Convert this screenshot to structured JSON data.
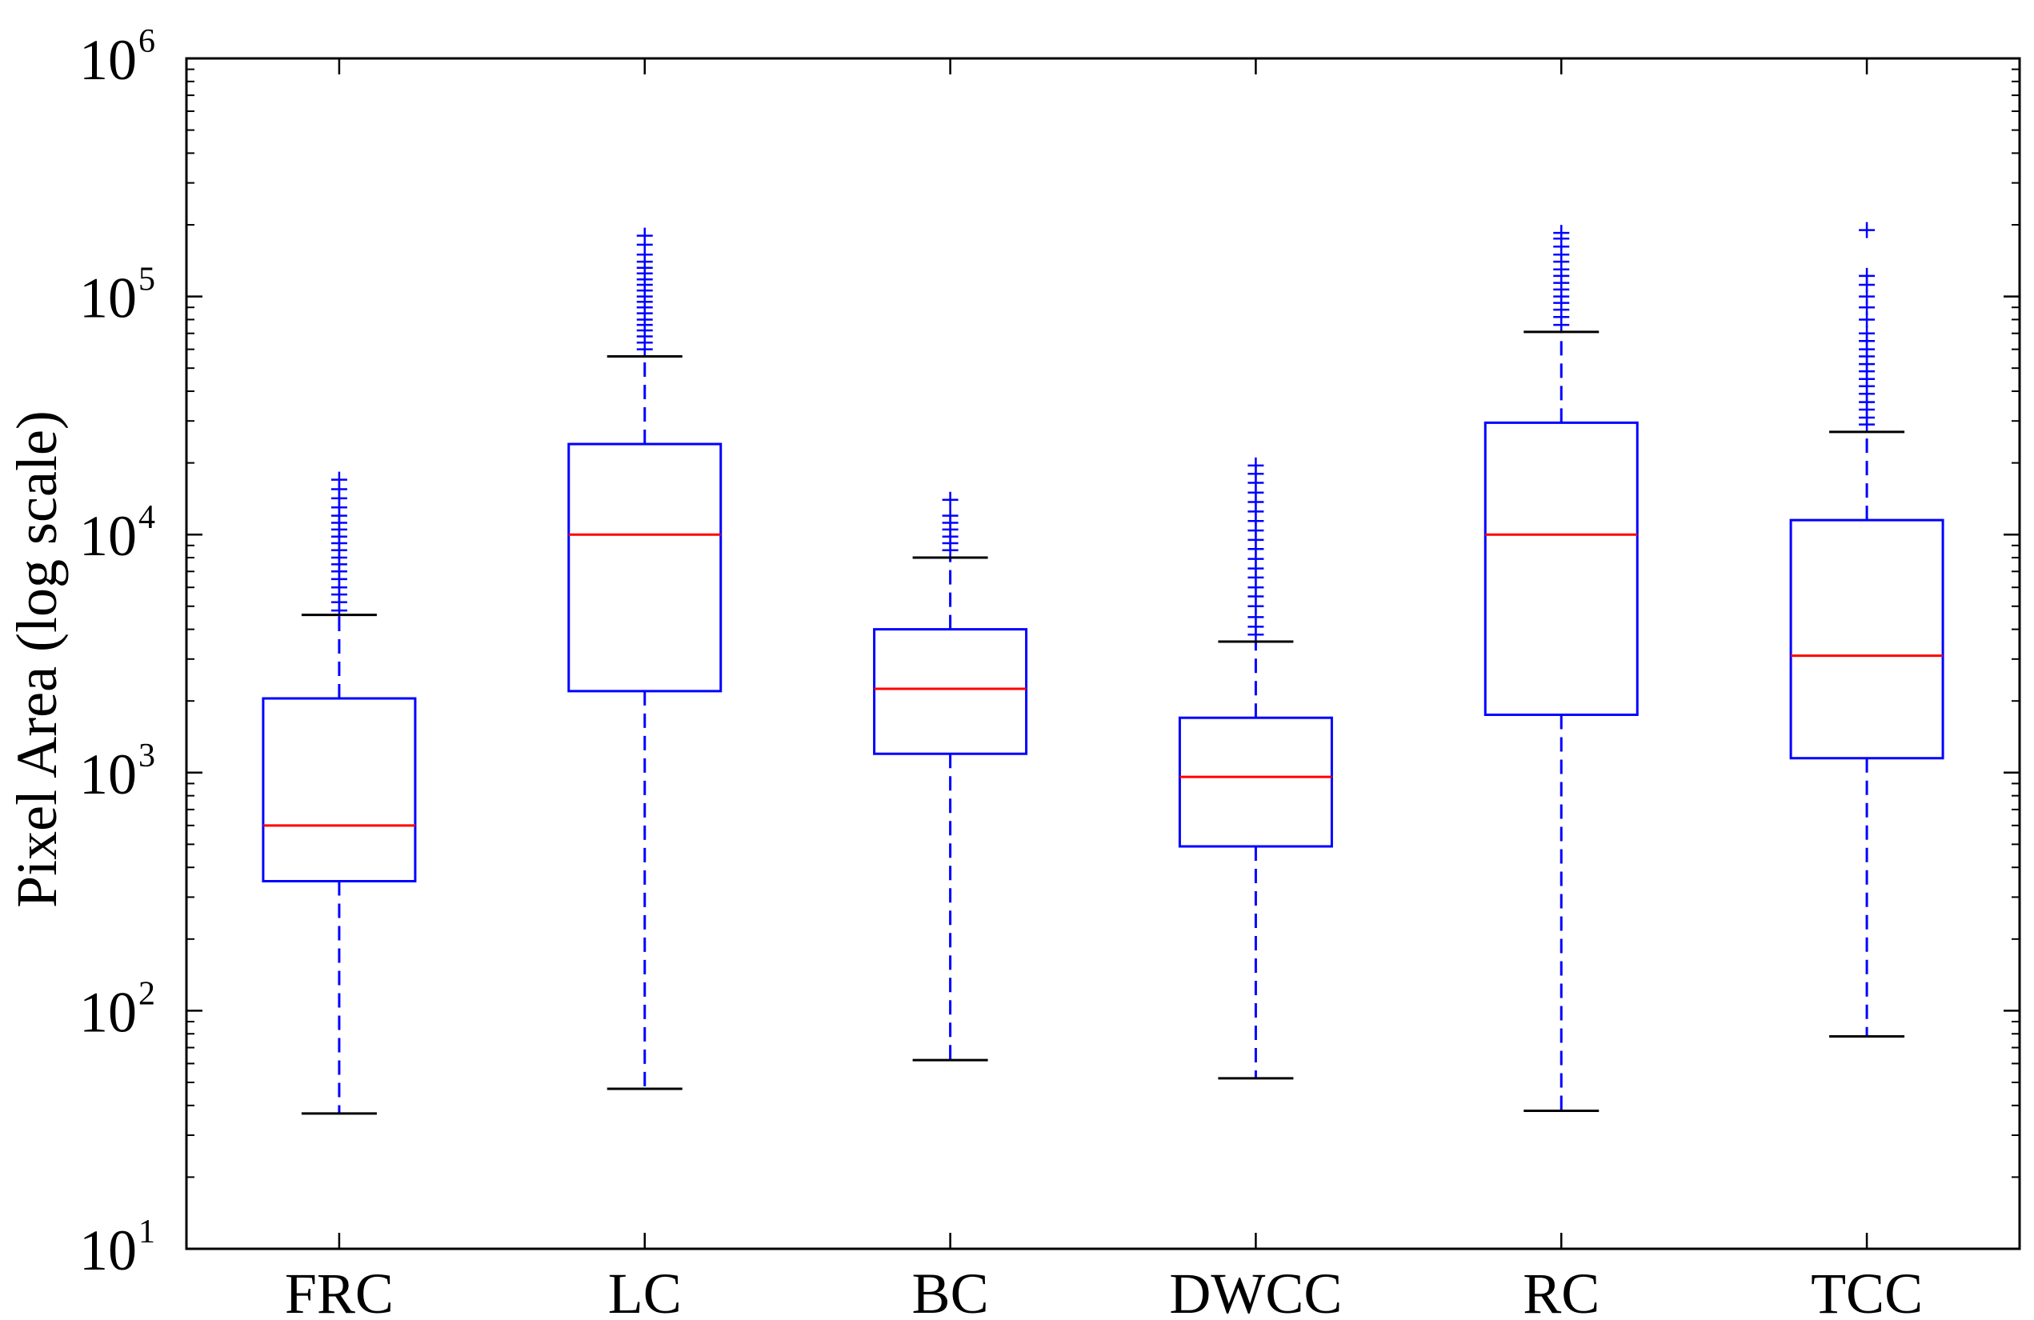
{
  "chart_data": {
    "type": "boxplot",
    "title": "",
    "xlabel": "",
    "ylabel": "Pixel Area (log scale)",
    "yscale": "log",
    "ylim": [
      10,
      1000000
    ],
    "yticks": [
      {
        "value": 10,
        "base": "10",
        "exp": "1"
      },
      {
        "value": 100,
        "base": "10",
        "exp": "2"
      },
      {
        "value": 1000,
        "base": "10",
        "exp": "3"
      },
      {
        "value": 10000,
        "base": "10",
        "exp": "4"
      },
      {
        "value": 100000,
        "base": "10",
        "exp": "5"
      },
      {
        "value": 1000000,
        "base": "10",
        "exp": "6"
      }
    ],
    "categories": [
      "FRC",
      "LC",
      "BC",
      "DWCC",
      "RC",
      "TCC"
    ],
    "boxes": [
      {
        "name": "FRC",
        "whisker_low": 37,
        "q1": 350,
        "median": 600,
        "q3": 2050,
        "whisker_high": 4600,
        "outliers": [
          4800,
          5200,
          5600,
          6000,
          6500,
          7000,
          7500,
          8000,
          8600,
          9200,
          9800,
          10500,
          11200,
          12000,
          13000,
          14200,
          15500,
          17000
        ]
      },
      {
        "name": "LC",
        "whisker_low": 47,
        "q1": 2200,
        "median": 10000,
        "q3": 24000,
        "whisker_high": 56000,
        "outliers": [
          60000,
          64000,
          68000,
          72000,
          76000,
          80000,
          85000,
          90000,
          95000,
          100000,
          106000,
          112000,
          118000,
          125000,
          132000,
          140000,
          150000,
          165000,
          180000
        ]
      },
      {
        "name": "BC",
        "whisker_low": 62,
        "q1": 1200,
        "median": 2250,
        "q3": 4000,
        "whisker_high": 8000,
        "outliers": [
          8600,
          9200,
          9800,
          10500,
          11200,
          12000,
          14000
        ]
      },
      {
        "name": "DWCC",
        "whisker_low": 52,
        "q1": 490,
        "median": 960,
        "q3": 1700,
        "whisker_high": 3550,
        "outliers": [
          3800,
          4100,
          4500,
          5000,
          5500,
          6000,
          6600,
          7200,
          7900,
          8700,
          9500,
          10400,
          11400,
          12500,
          13700,
          15000,
          16500,
          18000,
          19500
        ]
      },
      {
        "name": "RC",
        "whisker_low": 38,
        "q1": 1750,
        "median": 10000,
        "q3": 29500,
        "whisker_high": 71000,
        "outliers": [
          76000,
          82000,
          88000,
          94000,
          100000,
          107000,
          114000,
          122000,
          130000,
          140000,
          150000,
          162000,
          175000,
          185000
        ]
      },
      {
        "name": "TCC",
        "whisker_low": 78,
        "q1": 1150,
        "median": 3100,
        "q3": 11500,
        "whisker_high": 27000,
        "outliers": [
          29000,
          31000,
          33500,
          36000,
          39000,
          42000,
          45000,
          48500,
          52000,
          56000,
          60000,
          65000,
          70000,
          80000,
          90000,
          100000,
          112000,
          122000,
          190000
        ]
      }
    ],
    "colors": {
      "box": "#0000ff",
      "median": "#ff0000",
      "whisker_cap": "#000000",
      "outlier": "#0000ff",
      "axes": "#000000"
    },
    "grid": false,
    "legend": "none"
  }
}
